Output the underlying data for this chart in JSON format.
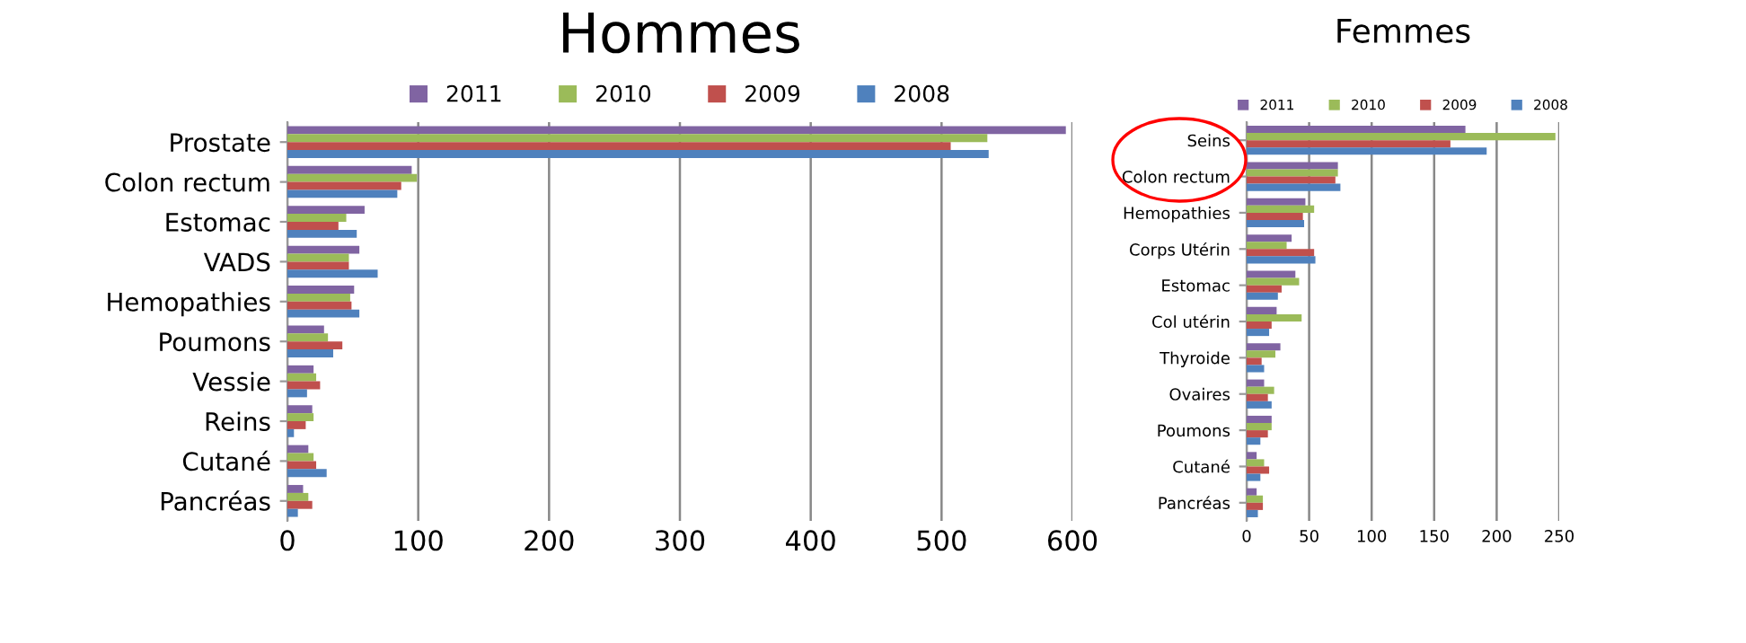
{
  "chart_data": [
    {
      "type": "bar",
      "orientation": "horizontal",
      "title": "Hommes",
      "categories": [
        "Prostate",
        "Colon rectum",
        "Estomac",
        "VADS",
        "Hemopathies",
        "Poumons",
        "Vessie",
        "Reins",
        "Cutané",
        "Pancréas"
      ],
      "series": [
        {
          "name": "2011",
          "color": "#8064a2",
          "values": [
            595,
            95,
            59,
            55,
            51,
            28,
            20,
            19,
            16,
            12
          ]
        },
        {
          "name": "2010",
          "color": "#9bbb59",
          "values": [
            535,
            99,
            45,
            47,
            48,
            31,
            22,
            20,
            20,
            16
          ]
        },
        {
          "name": "2009",
          "color": "#c0504d",
          "values": [
            507,
            87,
            39,
            47,
            49,
            42,
            25,
            14,
            22,
            19
          ]
        },
        {
          "name": "2008",
          "color": "#4f81bd",
          "values": [
            536,
            84,
            53,
            69,
            55,
            35,
            15,
            5,
            30,
            8
          ]
        }
      ],
      "xlim": [
        0,
        600
      ],
      "xticks": [
        0,
        100,
        200,
        300,
        400,
        500,
        600
      ],
      "grid": "x",
      "legend": "top"
    },
    {
      "type": "bar",
      "orientation": "horizontal",
      "title": "Femmes",
      "categories": [
        "Seins",
        "Colon rectum",
        "Hemopathies",
        "Corps Utérin",
        "Estomac",
        "Col utérin",
        "Thyroide",
        "Ovaires",
        "Poumons",
        "Cutané",
        "Pancréas"
      ],
      "series": [
        {
          "name": "2011",
          "color": "#8064a2",
          "values": [
            175,
            73,
            47,
            36,
            39,
            24,
            27,
            14,
            20,
            8,
            8
          ]
        },
        {
          "name": "2010",
          "color": "#9bbb59",
          "values": [
            247,
            73,
            54,
            32,
            42,
            44,
            23,
            22,
            20,
            14,
            13
          ]
        },
        {
          "name": "2009",
          "color": "#c0504d",
          "values": [
            163,
            71,
            45,
            54,
            28,
            20,
            12,
            17,
            17,
            18,
            13
          ]
        },
        {
          "name": "2008",
          "color": "#4f81bd",
          "values": [
            192,
            75,
            46,
            55,
            25,
            18,
            14,
            20,
            11,
            11,
            9
          ]
        }
      ],
      "xlim": [
        0,
        250
      ],
      "xticks": [
        0,
        50,
        100,
        150,
        200,
        250
      ],
      "grid": "x",
      "legend": "top"
    }
  ]
}
